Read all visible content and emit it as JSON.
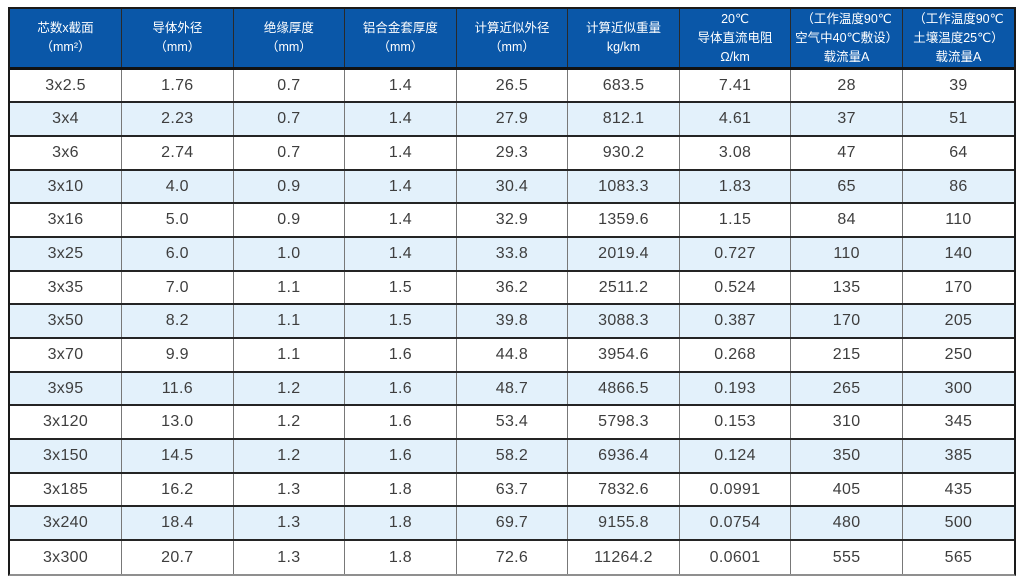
{
  "colors": {
    "header_bg": "#0a57a8",
    "header_text": "#ffffff",
    "row_stripe_bg": "#e3f1fb",
    "row_bg": "#ffffff",
    "cell_text": "#3e3e3e",
    "rule_dark": "#242424",
    "rule_gray": "#787878"
  },
  "table": {
    "columns": [
      {
        "id": "core-section",
        "lines": [
          "芯数x截面",
          "（mm²）"
        ]
      },
      {
        "id": "conductor-diameter",
        "lines": [
          "导体外径",
          "（mm）"
        ]
      },
      {
        "id": "insulation-thickness",
        "lines": [
          "绝缘厚度",
          "（mm）"
        ]
      },
      {
        "id": "alloy-sheath-thickness",
        "lines": [
          "铝合金套厚度",
          "（mm）"
        ]
      },
      {
        "id": "approx-outer-diameter",
        "lines": [
          "计算近似外径",
          "（mm）"
        ]
      },
      {
        "id": "approx-weight",
        "lines": [
          "计算近似重量",
          "kg/km"
        ]
      },
      {
        "id": "dc-resistance",
        "lines": [
          "20℃",
          "导体直流电阻",
          "Ω/km"
        ]
      },
      {
        "id": "ampacity-air",
        "lines": [
          "（工作温度90℃",
          "空气中40℃敷设）",
          "载流量A"
        ]
      },
      {
        "id": "ampacity-soil",
        "lines": [
          "（工作温度90℃",
          "土壤温度25℃）",
          "载流量A"
        ]
      }
    ],
    "rows": [
      [
        "3x2.5",
        "1.76",
        "0.7",
        "1.4",
        "26.5",
        "683.5",
        "7.41",
        "28",
        "39"
      ],
      [
        "3x4",
        "2.23",
        "0.7",
        "1.4",
        "27.9",
        "812.1",
        "4.61",
        "37",
        "51"
      ],
      [
        "3x6",
        "2.74",
        "0.7",
        "1.4",
        "29.3",
        "930.2",
        "3.08",
        "47",
        "64"
      ],
      [
        "3x10",
        "4.0",
        "0.9",
        "1.4",
        "30.4",
        "1083.3",
        "1.83",
        "65",
        "86"
      ],
      [
        "3x16",
        "5.0",
        "0.9",
        "1.4",
        "32.9",
        "1359.6",
        "1.15",
        "84",
        "110"
      ],
      [
        "3x25",
        "6.0",
        "1.0",
        "1.4",
        "33.8",
        "2019.4",
        "0.727",
        "110",
        "140"
      ],
      [
        "3x35",
        "7.0",
        "1.1",
        "1.5",
        "36.2",
        "2511.2",
        "0.524",
        "135",
        "170"
      ],
      [
        "3x50",
        "8.2",
        "1.1",
        "1.5",
        "39.8",
        "3088.3",
        "0.387",
        "170",
        "205"
      ],
      [
        "3x70",
        "9.9",
        "1.1",
        "1.6",
        "44.8",
        "3954.6",
        "0.268",
        "215",
        "250"
      ],
      [
        "3x95",
        "11.6",
        "1.2",
        "1.6",
        "48.7",
        "4866.5",
        "0.193",
        "265",
        "300"
      ],
      [
        "3x120",
        "13.0",
        "1.2",
        "1.6",
        "53.4",
        "5798.3",
        "0.153",
        "310",
        "345"
      ],
      [
        "3x150",
        "14.5",
        "1.2",
        "1.6",
        "58.2",
        "6936.4",
        "0.124",
        "350",
        "385"
      ],
      [
        "3x185",
        "16.2",
        "1.3",
        "1.8",
        "63.7",
        "7832.6",
        "0.0991",
        "405",
        "435"
      ],
      [
        "3x240",
        "18.4",
        "1.3",
        "1.8",
        "69.7",
        "9155.8",
        "0.0754",
        "480",
        "500"
      ],
      [
        "3x300",
        "20.7",
        "1.3",
        "1.8",
        "72.6",
        "11264.2",
        "0.0601",
        "555",
        "565"
      ]
    ]
  }
}
